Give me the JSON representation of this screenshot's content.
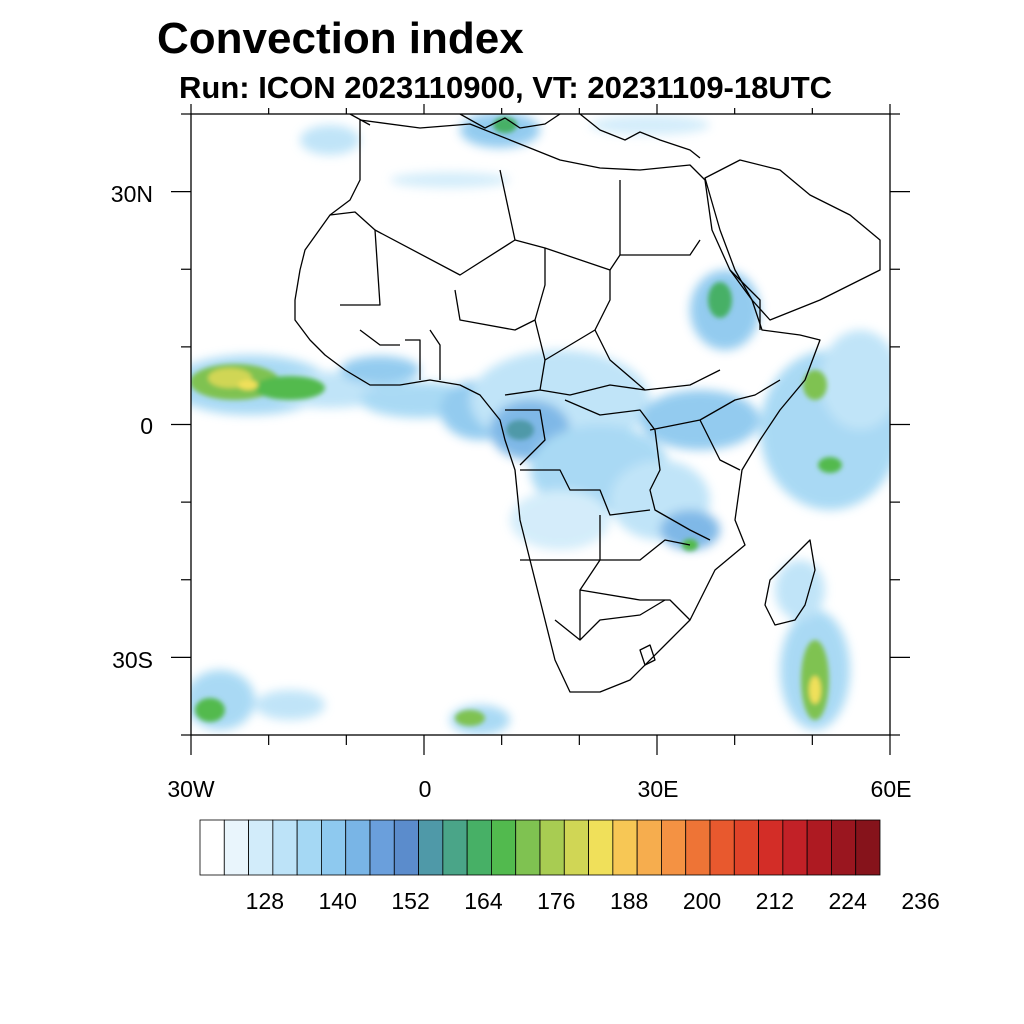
{
  "title": "Convection index",
  "subtitle": "Run: ICON 2023110900,  VT: 20231109-18UTC",
  "axes": {
    "lat_labels": [
      "30N",
      "0",
      "30S"
    ],
    "lon_labels": [
      "30W",
      "0",
      "30E",
      "60E"
    ],
    "lat_range": [
      -40,
      40
    ],
    "lon_range": [
      -30,
      60
    ]
  },
  "colorbar": {
    "labels": [
      "128",
      "140",
      "152",
      "164",
      "176",
      "188",
      "200",
      "212",
      "224",
      "236"
    ],
    "colors": [
      "#ffffff",
      "#e9f5fc",
      "#d2ecfa",
      "#bde3f8",
      "#a5d8f4",
      "#8ec9ef",
      "#79b5e6",
      "#6a9fdc",
      "#5b8ccc",
      "#4f99a8",
      "#4aa588",
      "#47b066",
      "#52ba4e",
      "#7fc251",
      "#a8cc52",
      "#d0d655",
      "#f0e05a",
      "#f7c755",
      "#f6ad4e",
      "#f49243",
      "#ee7436",
      "#e8592e",
      "#df4329",
      "#d32d27",
      "#c22127",
      "#ae1a22",
      "#9a161f",
      "#86131b"
    ],
    "units": "convection index"
  },
  "region": "Africa"
}
